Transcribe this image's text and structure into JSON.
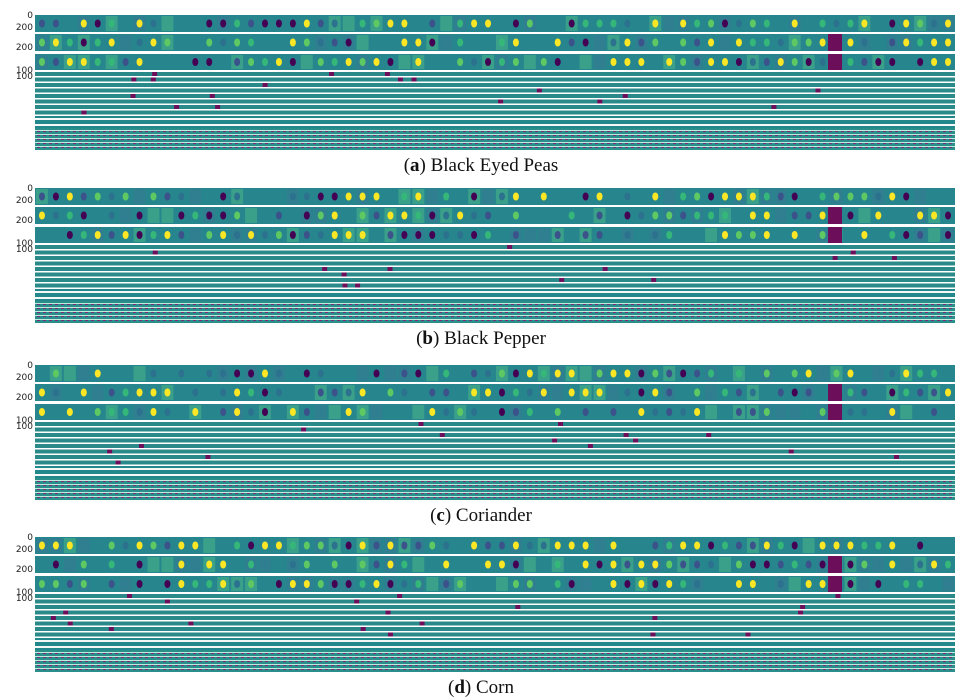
{
  "figure": {
    "panels": [
      {
        "caption": [
          "(",
          "a",
          ") Black Eyed Peas"
        ],
        "tick_labels": [
          "0",
          "200",
          "200",
          "100",
          "100"
        ]
      },
      {
        "caption": [
          "(",
          "b",
          ") Black Pepper"
        ],
        "tick_labels": [
          "0",
          "200",
          "200",
          "100",
          "100"
        ]
      },
      {
        "caption": [
          "(",
          "c",
          ") Coriander"
        ],
        "tick_labels": [
          "0",
          "200",
          "200",
          "100",
          "100"
        ]
      },
      {
        "caption": [
          "(",
          "d",
          ") Corn"
        ],
        "tick_labels": [
          "0",
          "200",
          "200",
          "100",
          "100"
        ]
      }
    ]
  }
}
